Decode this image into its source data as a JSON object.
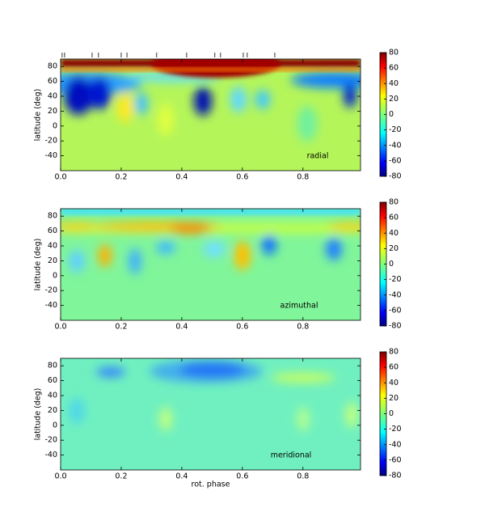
{
  "chart_data": [
    {
      "type": "heatmap",
      "annotation": "radial",
      "ylabel": "latitude (deg)",
      "xlim": [
        0,
        0.99
      ],
      "ylim": [
        -60,
        90
      ],
      "xticks": [
        {
          "value": 0,
          "label": "0.0"
        },
        0.2,
        0.4,
        0.6,
        0.8
      ],
      "yticks": [
        -40,
        -20,
        0,
        20,
        40,
        60,
        80
      ],
      "colorbar_lim": [
        -80,
        80
      ],
      "colorbar_ticks": [
        -80,
        -60,
        -40,
        -20,
        0,
        20,
        40,
        60,
        80
      ],
      "phases": [
        0.005,
        0.013,
        0.104,
        0.125,
        0.2,
        0.219,
        0.317,
        0.416,
        0.509,
        0.528,
        0.603,
        0.616,
        0.707
      ]
    },
    {
      "type": "heatmap",
      "annotation": "azimuthal",
      "ylabel": "latitude (deg)",
      "xlim": [
        0,
        0.99
      ],
      "ylim": [
        -60,
        90
      ],
      "xticks": [
        {
          "value": 0,
          "label": "0.0"
        },
        0.2,
        0.4,
        0.6,
        0.8
      ],
      "yticks": [
        -40,
        -20,
        0,
        20,
        40,
        60,
        80
      ],
      "colorbar_lim": [
        -80,
        80
      ],
      "colorbar_ticks": [
        -80,
        -60,
        -40,
        -20,
        0,
        20,
        40,
        60,
        80
      ]
    },
    {
      "type": "heatmap",
      "annotation": "meridional",
      "ylabel": "latitude (deg)",
      "xlabel": "rot. phase",
      "xlim": [
        0,
        0.99
      ],
      "ylim": [
        -60,
        90
      ],
      "xticks": [
        {
          "value": 0,
          "label": "0.0"
        },
        0.2,
        0.4,
        0.6,
        0.8
      ],
      "yticks": [
        -40,
        -20,
        0,
        20,
        40,
        60,
        80
      ],
      "colorbar_lim": [
        -80,
        80
      ],
      "colorbar_ticks": [
        -80,
        -60,
        -40,
        -20,
        0,
        20,
        40,
        60,
        80
      ]
    }
  ]
}
